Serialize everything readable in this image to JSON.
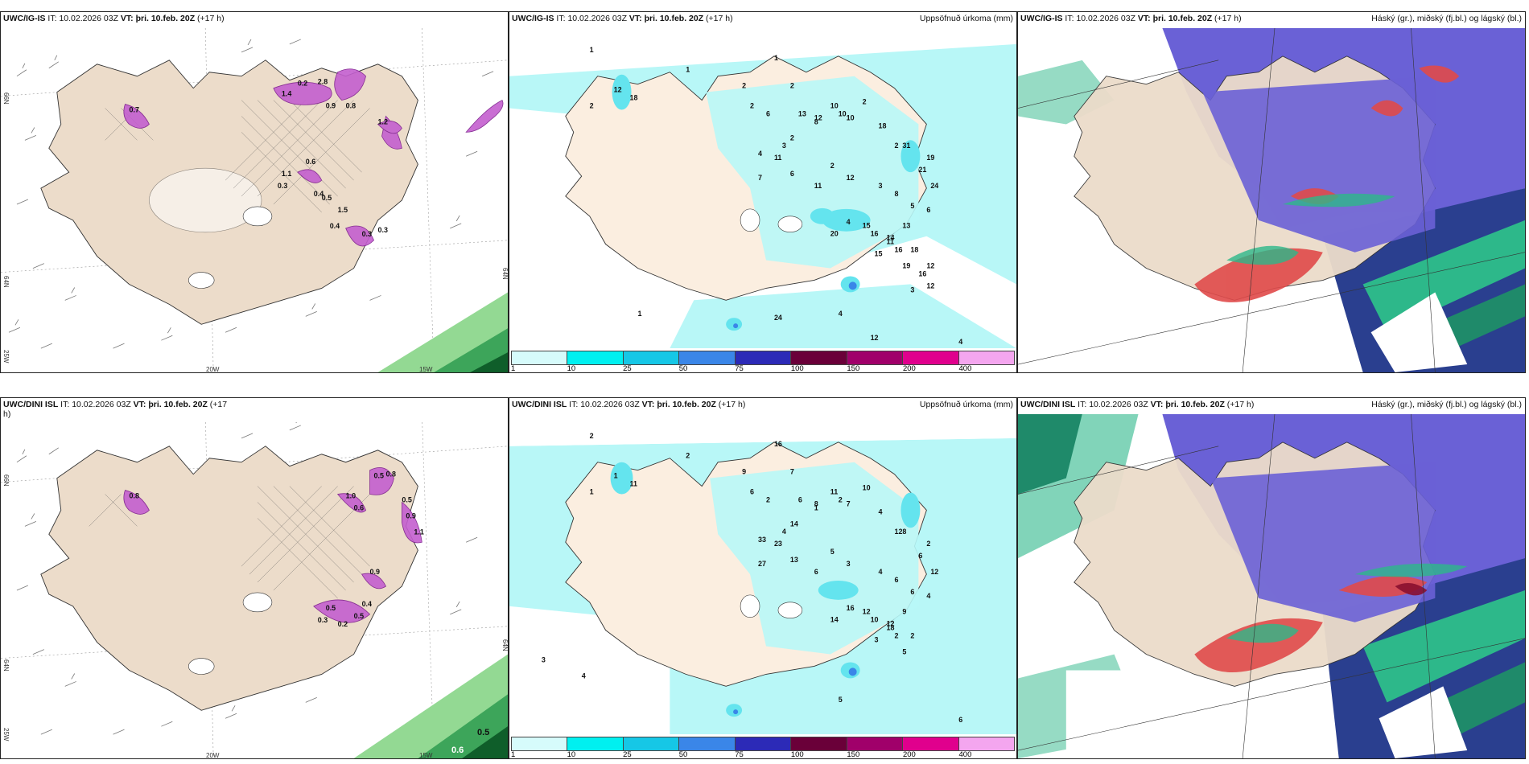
{
  "panels": [
    {
      "model": "UWC/IG-IS",
      "it_label": "IT:",
      "init": "10.02.2026 03Z",
      "vt_label": "VT:",
      "valid": "þri. 10.feb. 20Z",
      "lead": "(+17 h)",
      "title": "",
      "axis": {
        "lat_top": "66N",
        "lat_mid": "64N",
        "lon_left": "25W",
        "lon_mid": "20W",
        "lon_right": "15W",
        "edge": "64N"
      },
      "labels": [
        "0.7",
        "0.2",
        "2.8",
        "1.4",
        "0.9",
        "0.8",
        "1.2",
        "0.6",
        "1.1",
        "0.3",
        "0.4",
        "0.5",
        "1.5",
        "0.4",
        "0.3",
        "0.3"
      ]
    },
    {
      "model": "UWC/IG-IS",
      "it_label": "IT:",
      "init": "10.02.2026 03Z",
      "vt_label": "VT:",
      "valid": "þri. 10.feb. 20Z",
      "lead": "(+17 h)",
      "title": "Uppsöfnuð úrkoma (mm)",
      "numbers": [
        "1",
        "12",
        "18",
        "2",
        "1",
        "2",
        "2",
        "1",
        "2",
        "3",
        "6",
        "13",
        "12",
        "10",
        "2",
        "8",
        "10",
        "10",
        "2",
        "18",
        "2",
        "4",
        "11",
        "7",
        "31",
        "19",
        "21",
        "24",
        "6",
        "11",
        "2",
        "12",
        "3",
        "8",
        "5",
        "6",
        "20",
        "4",
        "15",
        "16",
        "14",
        "13",
        "11",
        "15",
        "16",
        "18",
        "19",
        "12",
        "16",
        "12",
        "3",
        "24",
        "1",
        "4",
        "12",
        "4"
      ]
    },
    {
      "model": "UWC/IG-IS",
      "it_label": "IT:",
      "init": "10.02.2026 03Z",
      "vt_label": "VT:",
      "valid": "þri. 10.feb. 20Z",
      "lead": "(+17 h)",
      "title": "Háský (gr.), miðský (fj.bl.) og lágský (bl.)"
    },
    {
      "model": "UWC/DINI ISL",
      "it_label": "IT:",
      "init": "10.02.2026 03Z",
      "vt_label": "VT:",
      "valid": "þri. 10.feb. 20Z",
      "lead": "(+17",
      "lead_wrap": "h)",
      "title": "",
      "axis": {
        "lat_top": "66N",
        "lat_mid": "64N",
        "lon_left": "25W",
        "lon_mid": "20W",
        "lon_right": "15W",
        "edge": "64N"
      },
      "labels": [
        "0.8",
        "0.5",
        "0.8",
        "0.5",
        "0.9",
        "1.1",
        "0.6",
        "1.0",
        "0.9",
        "0.5",
        "0.3",
        "0.2",
        "0.5",
        "0.4"
      ],
      "corner_labels": [
        "0.5",
        "0.6"
      ]
    },
    {
      "model": "UWC/DINI ISL",
      "it_label": "IT:",
      "init": "10.02.2026 03Z",
      "vt_label": "VT:",
      "valid": "þri. 10.feb. 20Z",
      "lead": "(+17 h)",
      "title": "Uppsöfnuð úrkoma (mm)",
      "numbers": [
        "2",
        "1",
        "11",
        "1",
        "2",
        "9",
        "7",
        "16",
        "6",
        "4",
        "2",
        "6",
        "8",
        "11",
        "14",
        "1",
        "2",
        "7",
        "10",
        "4",
        "12",
        "33",
        "23",
        "27",
        "8",
        "2",
        "6",
        "12",
        "13",
        "6",
        "5",
        "3",
        "4",
        "6",
        "6",
        "4",
        "14",
        "16",
        "12",
        "10",
        "12",
        "9",
        "18",
        "3",
        "2",
        "2",
        "5",
        "3",
        "4",
        "5",
        "6"
      ]
    },
    {
      "model": "UWC/DINI ISL",
      "it_label": "IT:",
      "init": "10.02.2026 03Z",
      "vt_label": "VT:",
      "valid": "þri. 10.feb. 20Z",
      "lead": "(+17 h)",
      "title": "Háský (gr.), miðský (fj.bl.) og lágský (bl.)"
    }
  ],
  "colorbar": {
    "colors": [
      "#d6fbfb",
      "#00f0f0",
      "#16c7e6",
      "#3a86e8",
      "#2c2ab7",
      "#6a0039",
      "#a0006a",
      "#e0008d",
      "#f4a6ef"
    ],
    "ticks": [
      "1",
      "10",
      "25",
      "50",
      "75",
      "100",
      "150",
      "200",
      "400"
    ]
  },
  "colors": {
    "land": "#ecdcca",
    "precip_light": "#b8f7f7",
    "precip_mid": "#64e4ee",
    "cloud_high": "#e04a4a",
    "cloud_mid": "#6a61d6",
    "cloud_low": "#2db88a",
    "snow_purple": "#c45fcf"
  }
}
